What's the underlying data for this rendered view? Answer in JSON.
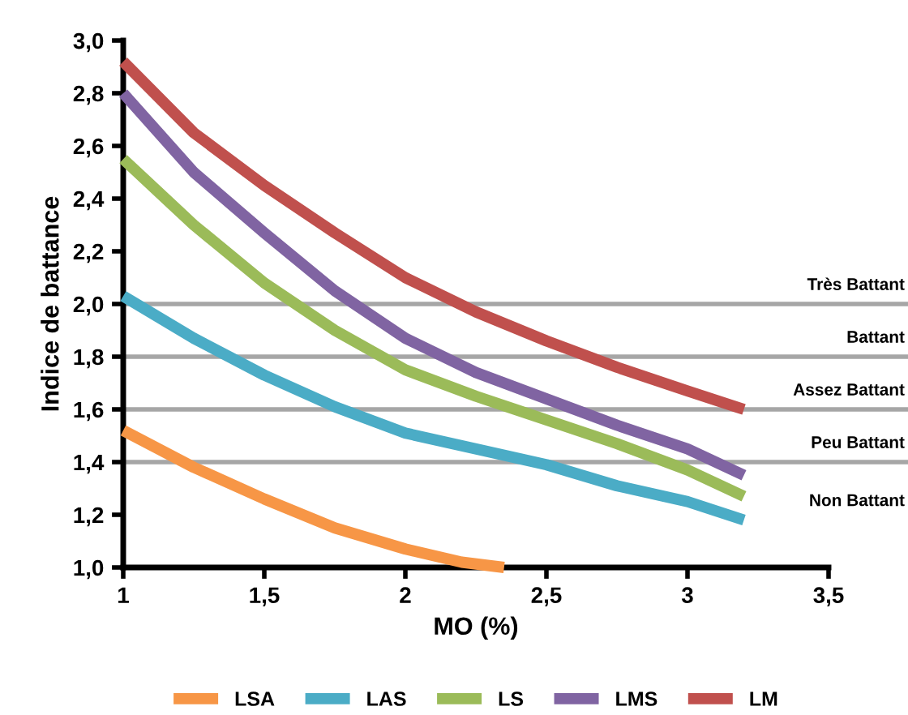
{
  "chart_data": {
    "type": "line",
    "xlabel": "MO (%)",
    "ylabel": "Indice de battance",
    "xlim": [
      1,
      3.5
    ],
    "ylim": [
      1.0,
      3.0
    ],
    "xticks": [
      1,
      {
        "value": 1.5,
        "label": "1,5"
      },
      2,
      {
        "value": 2.5,
        "label": "2,5"
      },
      3,
      {
        "value": 3.5,
        "label": "3,5"
      }
    ],
    "yticks": [
      {
        "value": 1.0,
        "label": "1,0"
      },
      {
        "value": 1.2,
        "label": "1,2"
      },
      {
        "value": 1.4,
        "label": "1,4"
      },
      {
        "value": 1.6,
        "label": "1,6"
      },
      {
        "value": 1.8,
        "label": "1,8"
      },
      {
        "value": 2.0,
        "label": "2,0"
      },
      {
        "value": 2.2,
        "label": "2,2"
      },
      {
        "value": 2.4,
        "label": "2,4"
      },
      {
        "value": 2.6,
        "label": "2,6"
      },
      {
        "value": 2.8,
        "label": "2,8"
      },
      {
        "value": 3.0,
        "label": "3,0"
      }
    ],
    "series": [
      {
        "name": "LSA",
        "color": "#f79646",
        "x": [
          1,
          1.25,
          1.5,
          1.75,
          2,
          2.2,
          2.35
        ],
        "values": [
          1.52,
          1.38,
          1.26,
          1.15,
          1.07,
          1.02,
          1.0
        ]
      },
      {
        "name": "LAS",
        "color": "#4bacc6",
        "x": [
          1,
          1.25,
          1.5,
          1.75,
          2,
          2.25,
          2.5,
          2.75,
          3,
          3.2
        ],
        "values": [
          2.03,
          1.87,
          1.73,
          1.61,
          1.51,
          1.45,
          1.39,
          1.31,
          1.25,
          1.18
        ]
      },
      {
        "name": "LS",
        "color": "#9bbb59",
        "x": [
          1,
          1.25,
          1.5,
          1.75,
          2,
          2.25,
          2.5,
          2.75,
          3,
          3.2
        ],
        "values": [
          2.55,
          2.3,
          2.08,
          1.9,
          1.75,
          1.65,
          1.56,
          1.47,
          1.37,
          1.27
        ]
      },
      {
        "name": "LMS",
        "color": "#8064a2",
        "x": [
          1,
          1.25,
          1.5,
          1.75,
          2,
          2.25,
          2.5,
          2.75,
          3,
          3.2
        ],
        "values": [
          2.8,
          2.5,
          2.27,
          2.05,
          1.87,
          1.74,
          1.64,
          1.54,
          1.45,
          1.35
        ]
      },
      {
        "name": "LM",
        "color": "#c0504d",
        "x": [
          1,
          1.25,
          1.5,
          1.75,
          2,
          2.25,
          2.5,
          2.75,
          3,
          3.2
        ],
        "values": [
          2.92,
          2.65,
          2.45,
          2.27,
          2.1,
          1.97,
          1.86,
          1.76,
          1.67,
          1.6
        ]
      }
    ],
    "ref_lines": [
      {
        "axis": "y",
        "value": 2.0,
        "label": "Très Battant",
        "color": "#a6a6a6"
      },
      {
        "axis": "y",
        "value": 1.8,
        "label": "Battant",
        "color": "#a6a6a6"
      },
      {
        "axis": "y",
        "value": 1.6,
        "label": "Assez Battant",
        "color": "#a6a6a6"
      },
      {
        "axis": "y",
        "value": 1.4,
        "label": "Peu Battant",
        "color": "#a6a6a6"
      }
    ],
    "annotations": [
      "Non Battant"
    ],
    "legend": "bottom",
    "grid": false,
    "marker": "none",
    "line_style": "solid"
  }
}
